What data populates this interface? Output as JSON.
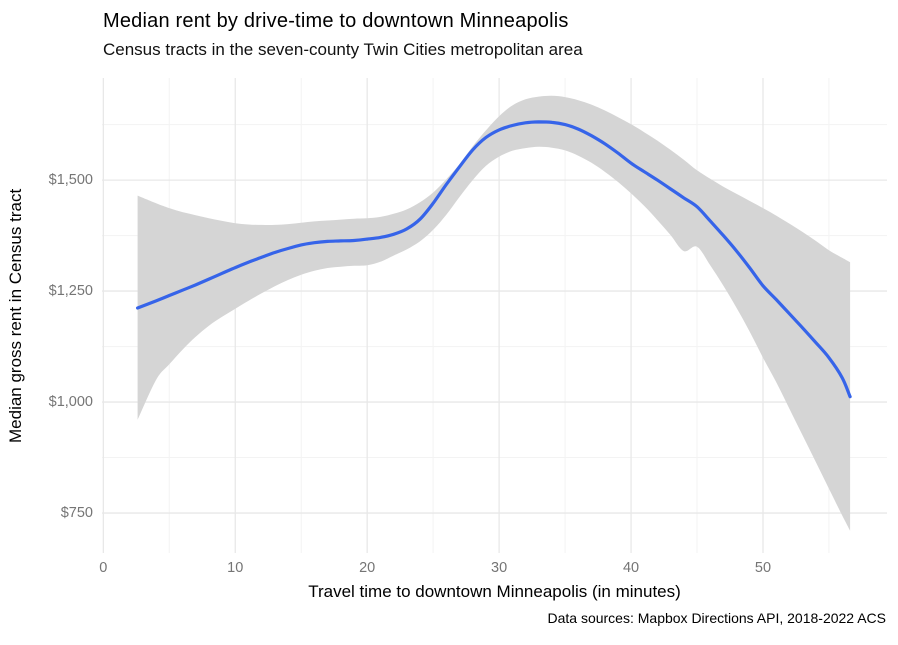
{
  "header": {
    "title": "Median rent by drive-time to downtown Minneapolis",
    "subtitle": "Census tracts in the seven-county Twin Cities metropolitan area"
  },
  "caption": "Data sources: Mapbox Directions API, 2018-2022 ACS",
  "chart_data": {
    "type": "line",
    "title": "Median rent by drive-time to downtown Minneapolis",
    "subtitle": "Census tracts in the seven-county Twin Cities metropolitan area",
    "xlabel": "Travel time to downtown Minneapolis (in minutes)",
    "ylabel": "Median gross rent in Census tract",
    "caption": "Data sources: Mapbox Directions API, 2018-2022 ACS",
    "legend": false,
    "grid": true,
    "xlim": [
      -0.1,
      59.4
    ],
    "ylim": [
      660,
      1730
    ],
    "x_ticks": {
      "values": [
        0,
        10,
        20,
        30,
        40,
        50
      ],
      "labels": [
        "0",
        "10",
        "20",
        "30",
        "40",
        "50"
      ]
    },
    "y_ticks": {
      "values": [
        750,
        1000,
        1250,
        1500
      ],
      "labels": [
        "$750",
        "$1,000",
        "$1,250",
        "$1,500"
      ]
    },
    "x_minor": [
      5,
      15,
      25,
      35,
      45,
      55
    ],
    "y_minor": [
      875,
      1125,
      1375,
      1625
    ],
    "x": [
      2.6,
      4,
      5,
      6,
      7,
      8,
      9,
      10,
      11,
      12,
      13,
      14,
      15,
      16,
      17,
      18,
      19,
      20,
      21,
      22,
      23,
      24,
      25,
      26,
      27,
      28,
      29,
      30,
      31,
      32,
      33,
      34,
      35,
      36,
      37,
      38,
      39,
      40,
      41,
      42,
      43,
      44,
      45,
      46,
      47,
      48,
      49,
      50,
      51,
      52,
      53,
      54,
      55,
      56,
      56.6
    ],
    "series": [
      {
        "name": "smoothed median rent",
        "role": "fit",
        "values": [
          1212,
          1228,
          1240,
          1252,
          1264,
          1277,
          1290,
          1303,
          1315,
          1326,
          1337,
          1346,
          1354,
          1359,
          1362,
          1363,
          1364,
          1367,
          1371,
          1378,
          1390,
          1412,
          1448,
          1490,
          1530,
          1568,
          1596,
          1613,
          1623,
          1629,
          1631,
          1630,
          1625,
          1615,
          1600,
          1582,
          1561,
          1538,
          1519,
          1500,
          1480,
          1460,
          1440,
          1408,
          1375,
          1340,
          1302,
          1262,
          1231,
          1199,
          1167,
          1134,
          1100,
          1055,
          1012
        ]
      },
      {
        "name": "confidence band upper",
        "role": "ci_upper",
        "values": [
          1465,
          1448,
          1437,
          1428,
          1421,
          1414,
          1408,
          1403,
          1400,
          1399,
          1399,
          1401,
          1404,
          1407,
          1409,
          1411,
          1413,
          1414,
          1417,
          1424,
          1434,
          1450,
          1472,
          1502,
          1536,
          1576,
          1612,
          1644,
          1668,
          1682,
          1688,
          1690,
          1687,
          1680,
          1670,
          1657,
          1642,
          1626,
          1608,
          1589,
          1568,
          1546,
          1522,
          1503,
          1485,
          1469,
          1453,
          1437,
          1420,
          1402,
          1383,
          1363,
          1342,
          1325,
          1315
        ]
      },
      {
        "name": "confidence band lower",
        "role": "ci_lower",
        "values": [
          960,
          1050,
          1085,
          1118,
          1147,
          1172,
          1192,
          1210,
          1228,
          1245,
          1261,
          1275,
          1287,
          1296,
          1302,
          1305,
          1307,
          1308,
          1316,
          1330,
          1344,
          1362,
          1388,
          1422,
          1462,
          1500,
          1532,
          1553,
          1566,
          1572,
          1575,
          1573,
          1567,
          1555,
          1539,
          1519,
          1496,
          1470,
          1442,
          1410,
          1376,
          1340,
          1350,
          1308,
          1262,
          1212,
          1158,
          1100,
          1045,
          985,
          925,
          865,
          805,
          745,
          710
        ]
      }
    ],
    "colors": {
      "line": "#3664E9",
      "band": "#D5D5D5",
      "grid_major": "#E8E8E8",
      "grid_minor": "#F3F3F3",
      "tick_label": "#757575",
      "text": "#000000",
      "background": "#FFFFFF"
    }
  }
}
